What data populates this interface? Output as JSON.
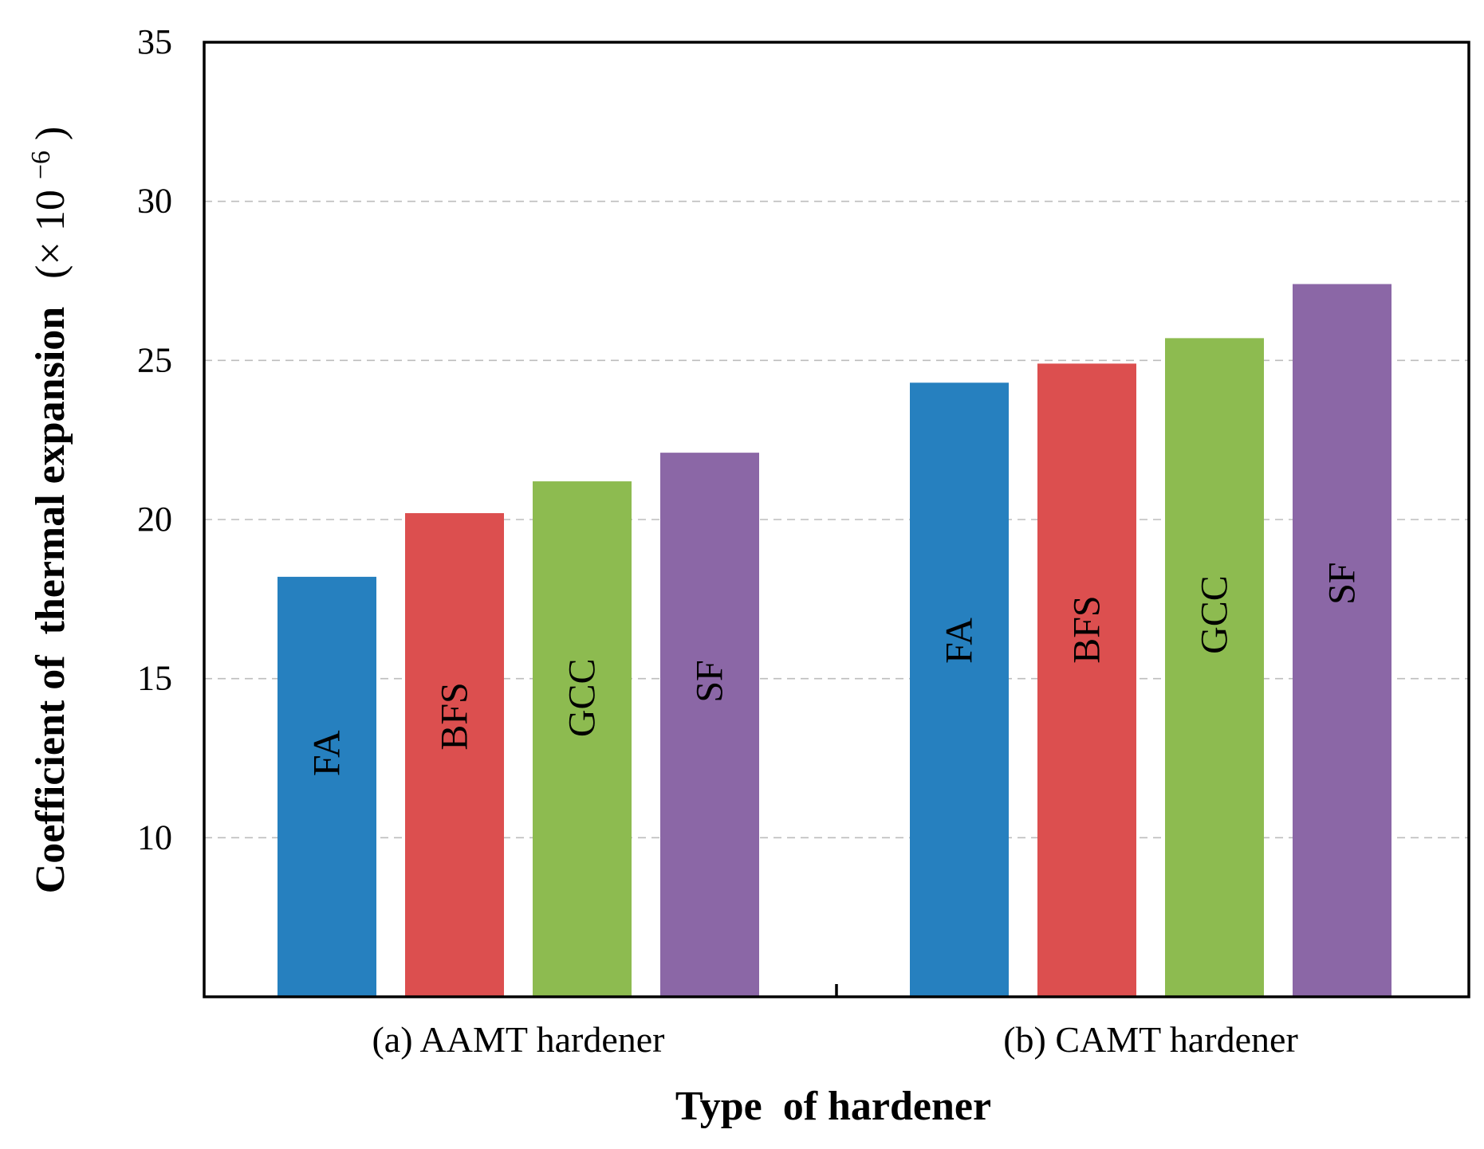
{
  "chart_data": {
    "type": "bar",
    "title": "",
    "xlabel": "Type  of hardener",
    "ylabel_main": "Coefficient of  thermal expansion",
    "ylabel_unit_prefix": "(× 10",
    "ylabel_unit_exp": "−6",
    "ylabel_unit_suffix": ")",
    "ylim": [
      5,
      35
    ],
    "yticks": [
      10,
      15,
      20,
      25,
      30,
      35
    ],
    "grid": true,
    "groups": [
      {
        "name": "(a) AAMT hardener",
        "bars": [
          {
            "label": "FA",
            "value": 18.2,
            "color": "#2680bf"
          },
          {
            "label": "BFS",
            "value": 20.2,
            "color": "#dc4f4f"
          },
          {
            "label": "GCC",
            "value": 21.2,
            "color": "#8dbb50"
          },
          {
            "label": "SF",
            "value": 22.1,
            "color": "#8b67a6"
          }
        ]
      },
      {
        "name": "(b) CAMT hardener",
        "bars": [
          {
            "label": "FA",
            "value": 24.3,
            "color": "#2680bf"
          },
          {
            "label": "BFS",
            "value": 24.9,
            "color": "#dc4f4f"
          },
          {
            "label": "GCC",
            "value": 25.7,
            "color": "#8dbb50"
          },
          {
            "label": "SF",
            "value": 27.4,
            "color": "#8b67a6"
          }
        ]
      }
    ]
  }
}
